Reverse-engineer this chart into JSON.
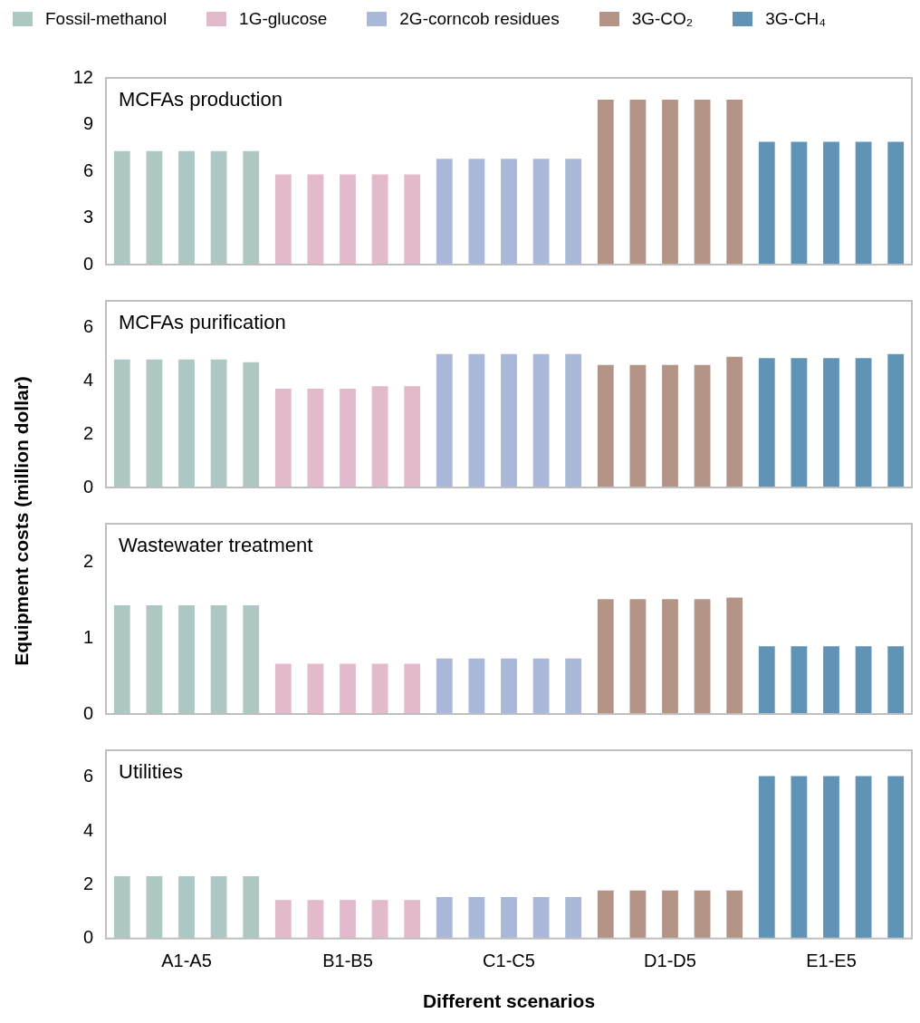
{
  "chart_data": [
    {
      "type": "bar",
      "title": "MCFAs production",
      "tick_labels": "y",
      "categories": [
        null,
        null,
        null,
        null,
        null,
        null,
        null,
        null,
        null,
        null,
        null,
        null,
        null,
        null,
        null,
        null,
        null,
        null,
        null,
        null,
        null,
        null,
        null,
        null,
        null
      ],
      "ylim": [
        0,
        12
      ],
      "yticks": [
        0,
        3,
        6,
        9,
        12
      ],
      "series": [
        {
          "colors": [
            "#adc8c3",
            "#adc8c3",
            "#adc8c3",
            "#adc8c3",
            "#adc8c3",
            "#e3b9cc",
            "#e3b9cc",
            "#e3b9cc",
            "#e3b9cc",
            "#e3b9cc",
            "#a9b8d9",
            "#a9b8d9",
            "#a9b8d9",
            "#a9b8d9",
            "#a9b8d9",
            "#b39486",
            "#b39486",
            "#b39486",
            "#b39486",
            "#b39486",
            "#6093b5",
            "#6093b5",
            "#6093b5",
            "#6093b5",
            "#6093b5"
          ],
          "values": [
            7.3,
            7.3,
            7.3,
            7.3,
            7.3,
            5.8,
            5.8,
            5.8,
            5.8,
            5.8,
            6.8,
            6.8,
            6.8,
            6.8,
            6.8,
            10.6,
            10.6,
            10.6,
            10.6,
            10.6,
            7.9,
            7.9,
            7.9,
            7.9,
            7.9
          ]
        }
      ]
    },
    {
      "type": "bar",
      "title": "MCFAs purification",
      "tick_labels": "y",
      "categories": [
        null,
        null,
        null,
        null,
        null,
        null,
        null,
        null,
        null,
        null,
        null,
        null,
        null,
        null,
        null,
        null,
        null,
        null,
        null,
        null,
        null,
        null,
        null,
        null,
        null
      ],
      "ylim": [
        0,
        7
      ],
      "yticks": [
        0,
        2,
        4,
        6
      ],
      "series": [
        {
          "colors": [
            "#adc8c3",
            "#adc8c3",
            "#adc8c3",
            "#adc8c3",
            "#adc8c3",
            "#e3b9cc",
            "#e3b9cc",
            "#e3b9cc",
            "#e3b9cc",
            "#e3b9cc",
            "#a9b8d9",
            "#a9b8d9",
            "#a9b8d9",
            "#a9b8d9",
            "#a9b8d9",
            "#b39486",
            "#b39486",
            "#b39486",
            "#b39486",
            "#b39486",
            "#6093b5",
            "#6093b5",
            "#6093b5",
            "#6093b5",
            "#6093b5"
          ],
          "values": [
            4.8,
            4.8,
            4.8,
            4.8,
            4.7,
            3.7,
            3.7,
            3.7,
            3.8,
            3.8,
            5.0,
            5.0,
            5.0,
            5.0,
            5.0,
            4.6,
            4.6,
            4.6,
            4.6,
            4.9,
            4.85,
            4.85,
            4.85,
            4.85,
            5.0
          ]
        }
      ]
    },
    {
      "type": "bar",
      "title": "Wastewater treatment",
      "ylabel": "Equipment costs (million dollar)",
      "tick_labels": "y",
      "categories": [
        null,
        null,
        null,
        null,
        null,
        null,
        null,
        null,
        null,
        null,
        null,
        null,
        null,
        null,
        null,
        null,
        null,
        null,
        null,
        null,
        null,
        null,
        null,
        null,
        null
      ],
      "ylim": [
        0,
        2.5
      ],
      "yticks": [
        0,
        1,
        2
      ],
      "series": [
        {
          "colors": [
            "#adc8c3",
            "#adc8c3",
            "#adc8c3",
            "#adc8c3",
            "#adc8c3",
            "#e3b9cc",
            "#e3b9cc",
            "#e3b9cc",
            "#e3b9cc",
            "#e3b9cc",
            "#a9b8d9",
            "#a9b8d9",
            "#a9b8d9",
            "#a9b8d9",
            "#a9b8d9",
            "#b39486",
            "#b39486",
            "#b39486",
            "#b39486",
            "#b39486",
            "#6093b5",
            "#6093b5",
            "#6093b5",
            "#6093b5",
            "#6093b5"
          ],
          "values": [
            1.43,
            1.43,
            1.43,
            1.43,
            1.43,
            0.66,
            0.66,
            0.66,
            0.66,
            0.66,
            0.73,
            0.73,
            0.73,
            0.73,
            0.73,
            1.51,
            1.51,
            1.51,
            1.51,
            1.53,
            0.89,
            0.89,
            0.89,
            0.89,
            0.89
          ]
        }
      ]
    },
    {
      "type": "bar",
      "title": "Utilities",
      "xlabel": "Different scenarios",
      "legend": "top",
      "categories": [
        null,
        null,
        "A1-A5",
        null,
        null,
        null,
        null,
        "B1-B5",
        null,
        null,
        null,
        null,
        "C1-C5",
        null,
        null,
        null,
        null,
        "D1-D5",
        null,
        null,
        null,
        null,
        "E1-E5",
        null,
        null
      ],
      "ylim": [
        0,
        7
      ],
      "yticks": [
        0,
        2,
        4,
        6
      ],
      "series": [
        {
          "name": "Fossil-methanol",
          "color": "#adc8c3",
          "values": [
            2.32,
            2.32,
            2.32,
            2.32,
            2.32,
            null,
            null,
            null,
            null,
            null,
            null,
            null,
            null,
            null,
            null,
            null,
            null,
            null,
            null,
            null,
            null,
            null,
            null,
            null,
            null
          ]
        },
        {
          "name": "1G-glucose",
          "color": "#e3b9cc",
          "values": [
            null,
            null,
            null,
            null,
            null,
            1.43,
            1.43,
            1.43,
            1.43,
            1.43,
            null,
            null,
            null,
            null,
            null,
            null,
            null,
            null,
            null,
            null,
            null,
            null,
            null,
            null,
            null
          ]
        },
        {
          "name": "2G-corncob residues",
          "color": "#a9b8d9",
          "values": [
            null,
            null,
            null,
            null,
            null,
            null,
            null,
            null,
            null,
            null,
            1.54,
            1.54,
            1.54,
            1.54,
            1.54,
            null,
            null,
            null,
            null,
            null,
            null,
            null,
            null,
            null,
            null
          ]
        },
        {
          "name": "3G-CO₂",
          "color": "#b39486",
          "values": [
            null,
            null,
            null,
            null,
            null,
            null,
            null,
            null,
            null,
            null,
            null,
            null,
            null,
            null,
            null,
            1.79,
            1.79,
            1.79,
            1.79,
            1.79,
            null,
            null,
            null,
            null,
            null
          ]
        },
        {
          "name": "3G-CH₄",
          "color": "#6093b5",
          "values": [
            null,
            null,
            null,
            null,
            null,
            null,
            null,
            null,
            null,
            null,
            null,
            null,
            null,
            null,
            null,
            null,
            null,
            null,
            null,
            null,
            6.04,
            6.04,
            6.04,
            6.04,
            6.04
          ]
        }
      ]
    }
  ]
}
